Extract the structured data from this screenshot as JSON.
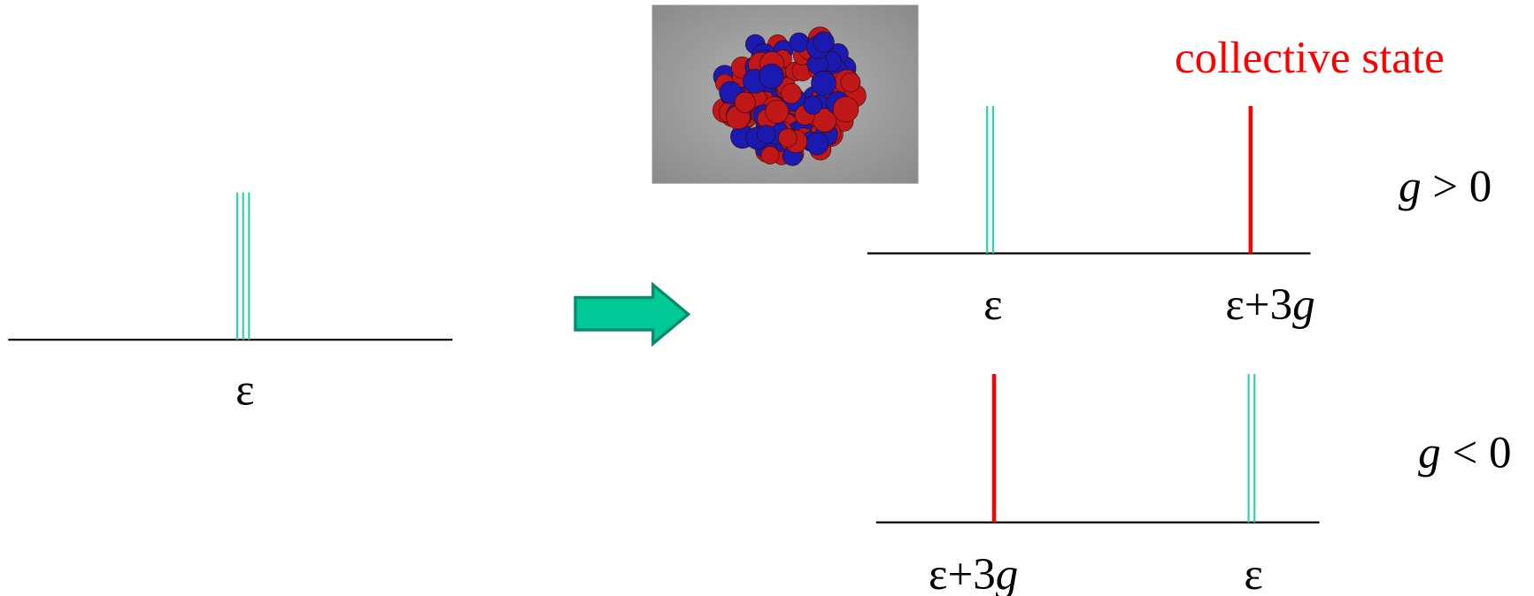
{
  "left": {
    "level_label": "ε"
  },
  "annotation": "collective state",
  "upper": {
    "condition": {
      "variable": "g",
      "relation": " > 0"
    },
    "labels": [
      {
        "text": "ε"
      },
      {
        "text": "ε+3",
        "variable": "g"
      }
    ]
  },
  "lower": {
    "condition": {
      "variable": "g",
      "relation": " < 0"
    },
    "labels": [
      {
        "text": "ε+3",
        "variable": "g"
      },
      {
        "text": "ε"
      }
    ]
  }
}
